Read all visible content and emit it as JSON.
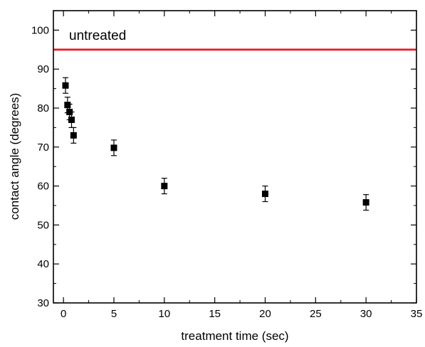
{
  "chart_data": {
    "type": "scatter",
    "xlabel": "treatment time (sec)",
    "ylabel": "contact angle (degrees)",
    "xlim": [
      -1,
      35
    ],
    "ylim": [
      30,
      105
    ],
    "x_ticks": [
      0,
      5,
      10,
      15,
      20,
      25,
      30,
      35
    ],
    "y_ticks": [
      30,
      40,
      50,
      60,
      70,
      80,
      90,
      100
    ],
    "x_tick_labels": [
      "0",
      "5",
      "10",
      "15",
      "20",
      "25",
      "30",
      "35"
    ],
    "y_tick_labels": [
      "30",
      "40",
      "50",
      "60",
      "70",
      "80",
      "90",
      "100"
    ],
    "series": [
      {
        "marker": "square",
        "color": "#000000",
        "points": [
          {
            "x": 0.2,
            "y": 85.8,
            "err": 2.0
          },
          {
            "x": 0.4,
            "y": 80.8,
            "err": 2.0
          },
          {
            "x": 0.6,
            "y": 79.0,
            "err": 2.0
          },
          {
            "x": 0.8,
            "y": 77.0,
            "err": 2.0
          },
          {
            "x": 1.0,
            "y": 73.0,
            "err": 2.0
          },
          {
            "x": 5.0,
            "y": 69.8,
            "err": 2.0
          },
          {
            "x": 10.0,
            "y": 60.0,
            "err": 2.0
          },
          {
            "x": 20.0,
            "y": 58.0,
            "err": 2.0
          },
          {
            "x": 30.0,
            "y": 55.8,
            "err": 2.0
          }
        ]
      }
    ],
    "reference_line": {
      "y": 95,
      "color": "#e8202a"
    },
    "annotations": [
      {
        "text": "untreated",
        "x": 0.2,
        "y": 98.8
      }
    ],
    "grid": false
  }
}
